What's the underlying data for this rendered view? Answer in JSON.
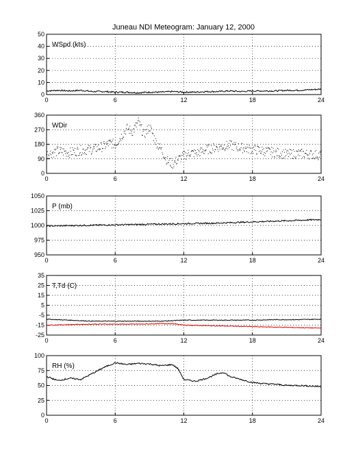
{
  "figure": {
    "title": "Juneau NDI Meteogram:   January 12, 2000"
  },
  "chart_data": [
    {
      "type": "line",
      "label": "WSpd (kts)",
      "xlim": [
        0,
        24
      ],
      "xticks": [
        0,
        6,
        12,
        18,
        24
      ],
      "ylim": [
        0,
        50
      ],
      "yticks": [
        0,
        10,
        20,
        30,
        40,
        50
      ],
      "grid": true,
      "series": [
        {
          "color": "#000000",
          "style": "line",
          "x": [
            0,
            1,
            2,
            3,
            4,
            5,
            6,
            7,
            8,
            9,
            10,
            11,
            12,
            13,
            14,
            15,
            16,
            17,
            18,
            19,
            20,
            21,
            22,
            23,
            24
          ],
          "y": [
            3,
            3.5,
            3,
            3.5,
            2.5,
            2.5,
            2,
            2,
            1.5,
            2,
            2,
            2.5,
            2,
            2,
            2.5,
            2.5,
            3,
            2.5,
            3,
            3,
            3,
            3.5,
            3.5,
            4,
            4.5
          ]
        }
      ]
    },
    {
      "type": "scatter",
      "label": "WDir",
      "xlim": [
        0,
        24
      ],
      "xticks": [
        0,
        6,
        12,
        18,
        24
      ],
      "ylim": [
        0,
        360
      ],
      "yticks": [
        0,
        90,
        180,
        270,
        360
      ],
      "grid": true,
      "series": [
        {
          "color": "#000000",
          "style": "dots",
          "x": [
            0,
            1,
            2,
            3,
            4,
            5,
            5.5,
            6,
            6.5,
            7,
            7.5,
            8,
            8.5,
            9,
            9.5,
            10,
            10.5,
            11,
            11.5,
            12,
            12.5,
            13,
            14,
            15,
            16,
            17,
            18,
            19,
            20,
            21,
            22,
            23,
            24
          ],
          "y": [
            120,
            140,
            130,
            145,
            150,
            170,
            190,
            180,
            230,
            280,
            260,
            320,
            240,
            290,
            200,
            150,
            80,
            60,
            90,
            110,
            130,
            125,
            150,
            165,
            175,
            160,
            150,
            140,
            130,
            120,
            125,
            120,
            115
          ]
        }
      ]
    },
    {
      "type": "line",
      "label": "P (mb)",
      "xlim": [
        0,
        24
      ],
      "xticks": [
        0,
        6,
        12,
        18,
        24
      ],
      "ylim": [
        950,
        1050
      ],
      "yticks": [
        950,
        975,
        1000,
        1025,
        1050
      ],
      "grid": true,
      "series": [
        {
          "color": "#000000",
          "style": "line",
          "x": [
            0,
            3,
            6,
            9,
            12,
            15,
            18,
            21,
            24
          ],
          "y": [
            999,
            1000,
            1001,
            1002,
            1003,
            1004,
            1006,
            1008,
            1010
          ]
        }
      ]
    },
    {
      "type": "line",
      "label": "T,Td (C)",
      "xlim": [
        0,
        24
      ],
      "xticks": [
        0,
        6,
        12,
        18,
        24
      ],
      "ylim": [
        -25,
        35
      ],
      "yticks": [
        -25,
        -15,
        -5,
        5,
        15,
        25,
        35
      ],
      "grid": true,
      "series": [
        {
          "color": "#000000",
          "style": "line",
          "x": [
            0,
            2,
            4,
            6,
            8,
            10,
            12,
            14,
            16,
            18,
            20,
            22,
            24
          ],
          "y": [
            -9,
            -10,
            -11,
            -11,
            -11,
            -11,
            -10,
            -10,
            -10,
            -10,
            -9.5,
            -9.5,
            -9
          ]
        },
        {
          "color": "#dd0000",
          "style": "line",
          "x": [
            0,
            2,
            4,
            6,
            8,
            10,
            11,
            12,
            14,
            16,
            18,
            20,
            22,
            24
          ],
          "y": [
            -15,
            -14.5,
            -14,
            -14,
            -14,
            -13.5,
            -13.5,
            -15,
            -15.5,
            -16,
            -16.5,
            -17,
            -17.5,
            -18
          ]
        }
      ]
    },
    {
      "type": "line",
      "label": "RH (%)",
      "xlim": [
        0,
        24
      ],
      "xticks": [
        0,
        6,
        12,
        18,
        24
      ],
      "ylim": [
        0,
        100
      ],
      "yticks": [
        0,
        25,
        50,
        75,
        100
      ],
      "grid": true,
      "series": [
        {
          "color": "#000000",
          "style": "line",
          "x": [
            0,
            1,
            2,
            3,
            4,
            4.5,
            5,
            6,
            7,
            8,
            9,
            10,
            11,
            11.5,
            12,
            13,
            14,
            15,
            15.5,
            16,
            17,
            18,
            19,
            20,
            21,
            22,
            23,
            24
          ],
          "y": [
            65,
            58,
            62,
            60,
            70,
            75,
            80,
            88,
            85,
            87,
            86,
            83,
            85,
            78,
            60,
            57,
            62,
            70,
            72,
            65,
            60,
            55,
            53,
            52,
            50,
            50,
            49,
            48
          ]
        }
      ]
    }
  ]
}
